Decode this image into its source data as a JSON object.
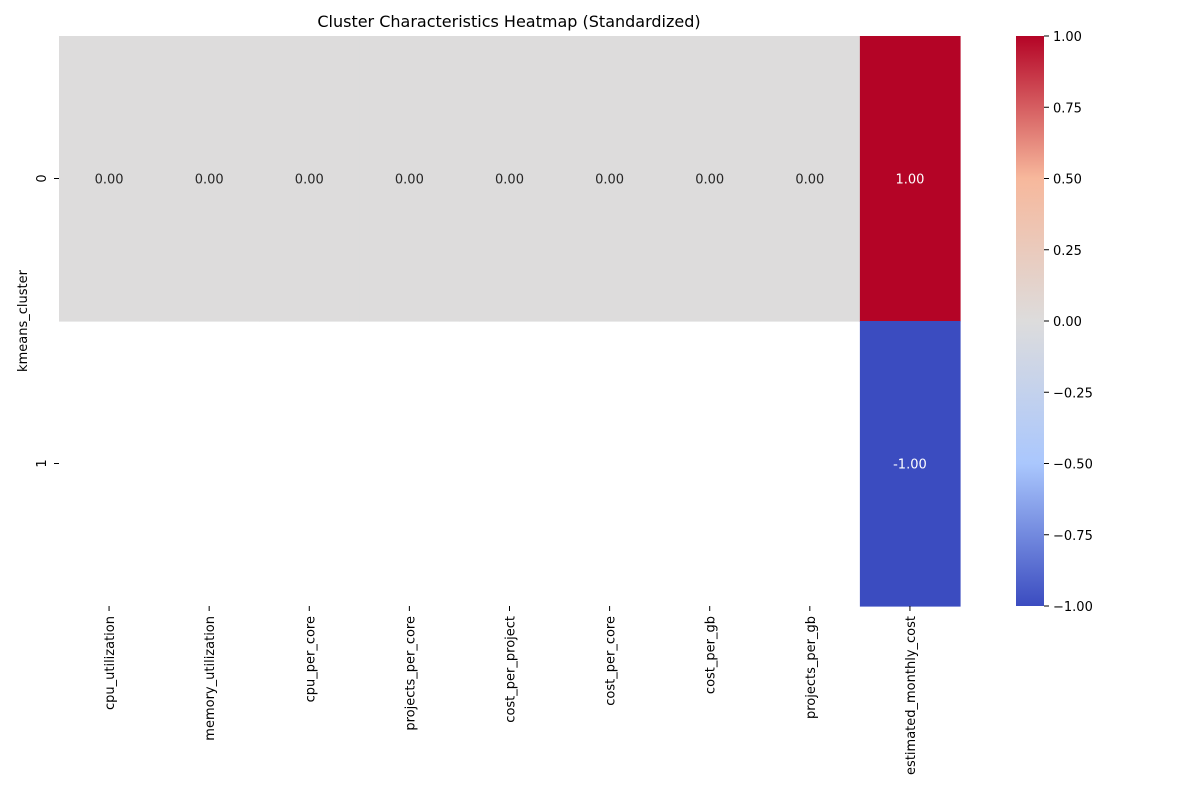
{
  "chart_data": {
    "type": "heatmap",
    "title": "Cluster Characteristics Heatmap (Standardized)",
    "xlabel": "",
    "ylabel": "kmeans_cluster",
    "columns": [
      "cpu_utilization",
      "memory_utilization",
      "cpu_per_core",
      "projects_per_core",
      "cost_per_project",
      "cost_per_core",
      "cost_per_gb",
      "projects_per_gb",
      "estimated_monthly_cost"
    ],
    "rows": [
      "0",
      "1"
    ],
    "values": [
      [
        0.0,
        0.0,
        0.0,
        0.0,
        0.0,
        0.0,
        0.0,
        0.0,
        1.0
      ],
      [
        null,
        null,
        null,
        null,
        null,
        null,
        null,
        null,
        -1.0
      ]
    ],
    "annotations": [
      [
        "0.00",
        "0.00",
        "0.00",
        "0.00",
        "0.00",
        "0.00",
        "0.00",
        "0.00",
        "1.00"
      ],
      [
        "",
        "",
        "",
        "",
        "",
        "",
        "",
        "",
        "-1.00"
      ]
    ],
    "colormap": "coolwarm",
    "colormap_stops": [
      "#3b4cc0",
      "#aac7fd",
      "#dddcdc",
      "#f7b89c",
      "#b40426"
    ],
    "vmin": -1.0,
    "vmax": 1.0,
    "colorbar_ticks": [
      "1.00",
      "0.75",
      "0.50",
      "0.25",
      "0.00",
      "−0.25",
      "−0.50",
      "−0.75",
      "−1.00"
    ],
    "colorbar_tick_values": [
      1.0,
      0.75,
      0.5,
      0.25,
      0.0,
      -0.25,
      -0.5,
      -0.75,
      -1.0
    ],
    "grid": false,
    "legend": "colorbar-right"
  }
}
